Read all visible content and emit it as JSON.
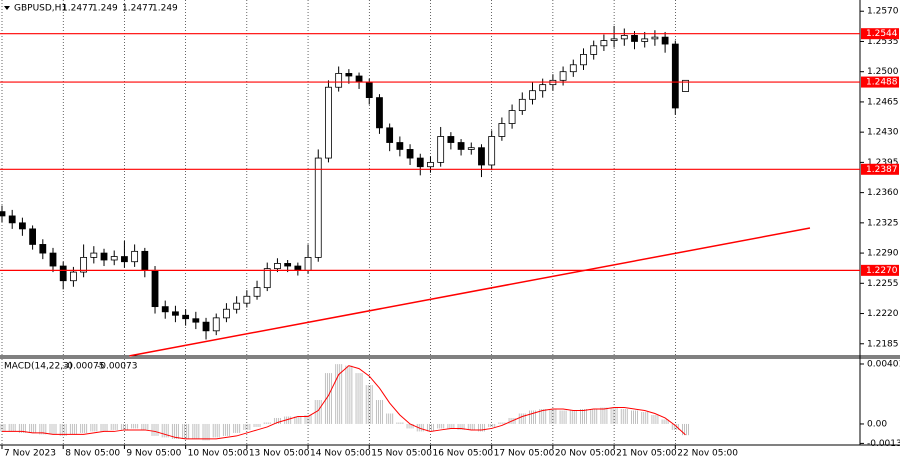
{
  "chart_data": [
    {
      "type": "candlestick",
      "title": "GBPUSD,H1",
      "xlim": [
        0,
        84.3
      ],
      "xticks": [
        {
          "value": 0,
          "label": "7 Nov 2023"
        },
        {
          "value": 6,
          "label": "8 Nov 05:00"
        },
        {
          "value": 12,
          "label": "9 Nov 05:00"
        },
        {
          "value": 18,
          "label": "10 Nov 05:00"
        },
        {
          "value": 24,
          "label": "13 Nov 05:00"
        },
        {
          "value": 30,
          "label": "14 Nov 05:00"
        },
        {
          "value": 36,
          "label": "15 Nov 05:00"
        },
        {
          "value": 42,
          "label": "16 Nov 05:00"
        },
        {
          "value": 48,
          "label": "17 Nov 05:00"
        },
        {
          "value": 54,
          "label": "20 Nov 05:00"
        },
        {
          "value": 60,
          "label": "21 Nov 05:00"
        },
        {
          "value": 66,
          "label": "22 Nov 05:00"
        }
      ],
      "ylim": [
        1.2172,
        1.2583
      ],
      "yticks": [
        {
          "value": 1.257,
          "label": "1.2570"
        },
        1.2535,
        {
          "value": 1.25,
          "label": "1.2500"
        },
        1.2465,
        {
          "value": 1.243,
          "label": "1.2430"
        },
        1.2395,
        {
          "value": 1.236,
          "label": "1.2360"
        },
        1.2325,
        {
          "value": 1.229,
          "label": "1.2290"
        },
        1.2255,
        {
          "value": 1.222,
          "label": "1.2220"
        },
        1.2185
      ],
      "open": [
        1.2338,
        1.2333,
        1.2325,
        1.2318,
        1.23,
        1.229,
        1.2275,
        1.2258,
        1.2268,
        1.2285,
        1.229,
        1.2282,
        1.2286,
        1.228,
        1.2292,
        1.227,
        1.2228,
        1.2222,
        1.2218,
        1.2214,
        1.221,
        1.22,
        1.2215,
        1.2225,
        1.2232,
        1.224,
        1.225,
        1.2272,
        1.2278,
        1.2275,
        1.227,
        1.2285,
        1.24,
        1.2482,
        1.2498,
        1.2495,
        1.2488,
        1.247,
        1.2435,
        1.2418,
        1.241,
        1.24,
        1.239,
        1.2395,
        1.2425,
        1.2418,
        1.241,
        1.2412,
        1.2392,
        1.2425,
        1.244,
        1.2455,
        1.2468,
        1.2478,
        1.2485,
        1.249,
        1.25,
        1.2508,
        1.252,
        1.253,
        1.2536,
        1.2538,
        1.2542,
        1.2535,
        1.2538,
        1.254,
        1.2532,
        1.2477
      ],
      "high": [
        1.2345,
        1.234,
        1.2331,
        1.2322,
        1.2306,
        1.2296,
        1.228,
        1.2274,
        1.23,
        1.2298,
        1.2295,
        1.2293,
        1.2304,
        1.23,
        1.2296,
        1.2275,
        1.2235,
        1.2229,
        1.2225,
        1.2222,
        1.2215,
        1.222,
        1.2232,
        1.224,
        1.2247,
        1.2258,
        1.2279,
        1.2284,
        1.2282,
        1.2279,
        1.23,
        1.241,
        1.249,
        1.2506,
        1.2503,
        1.2499,
        1.2492,
        1.2474,
        1.244,
        1.2425,
        1.2416,
        1.2405,
        1.2402,
        1.2436,
        1.243,
        1.2422,
        1.2418,
        1.2416,
        1.2432,
        1.2447,
        1.2462,
        1.2476,
        1.2488,
        1.2492,
        1.2497,
        1.2506,
        1.2514,
        1.2527,
        1.2536,
        1.2543,
        1.2553,
        1.255,
        1.2547,
        1.2546,
        1.2548,
        1.2546,
        1.2536,
        1.249
      ],
      "low": [
        1.2326,
        1.2318,
        1.231,
        1.2294,
        1.2283,
        1.2268,
        1.2248,
        1.2251,
        1.2262,
        1.2278,
        1.2275,
        1.2276,
        1.2273,
        1.2274,
        1.2262,
        1.222,
        1.2214,
        1.221,
        1.2206,
        1.2202,
        1.219,
        1.2195,
        1.221,
        1.222,
        1.2227,
        1.2236,
        1.2246,
        1.2268,
        1.2268,
        1.2264,
        1.2266,
        1.228,
        1.2395,
        1.2477,
        1.2486,
        1.248,
        1.2462,
        1.2428,
        1.2408,
        1.2402,
        1.2392,
        1.238,
        1.2383,
        1.239,
        1.241,
        1.2403,
        1.2404,
        1.2378,
        1.2386,
        1.242,
        1.2434,
        1.245,
        1.2462,
        1.247,
        1.2478,
        1.2484,
        1.2494,
        1.2502,
        1.2514,
        1.2524,
        1.2528,
        1.253,
        1.2526,
        1.2528,
        1.253,
        1.2522,
        1.245,
        1.2477
      ],
      "close": [
        1.2333,
        1.2325,
        1.2318,
        1.23,
        1.229,
        1.2275,
        1.2258,
        1.2268,
        1.2285,
        1.229,
        1.2282,
        1.2286,
        1.228,
        1.2292,
        1.227,
        1.2228,
        1.2222,
        1.2218,
        1.2214,
        1.221,
        1.22,
        1.2215,
        1.2225,
        1.2232,
        1.224,
        1.225,
        1.2272,
        1.2278,
        1.2275,
        1.227,
        1.2285,
        1.24,
        1.2482,
        1.2498,
        1.2495,
        1.2488,
        1.247,
        1.2435,
        1.2418,
        1.241,
        1.24,
        1.239,
        1.2395,
        1.2425,
        1.2418,
        1.241,
        1.2412,
        1.2392,
        1.2425,
        1.244,
        1.2455,
        1.2468,
        1.2478,
        1.2485,
        1.249,
        1.25,
        1.2508,
        1.252,
        1.253,
        1.2536,
        1.2538,
        1.2542,
        1.2535,
        1.2538,
        1.254,
        1.2532,
        1.2458,
        1.249
      ],
      "levels": [
        1.2544,
        1.2488,
        1.2387,
        1.227
      ],
      "level_labels": [
        "1.2544",
        "1.2488",
        "1.2387",
        "1.2270"
      ],
      "level_color": "#ff0000",
      "trendline": {
        "x": [
          12.5,
          79.2
        ],
        "y": [
          1.2171,
          1.2319
        ],
        "color": "#ff0000"
      }
    },
    {
      "type": "macd",
      "title": "MACD(14,22,3)",
      "ylim": [
        -0.00134,
        0.00441
      ],
      "yticks": [
        0.00401,
        {
          "value": 0,
          "label": "0.00"
        },
        -0.0013
      ],
      "series": [
        {
          "name": "histogram",
          "color": "#c0c0c0",
          "values": [
            -0.0005,
            -0.0005,
            -0.0006,
            -0.0006,
            -0.0007,
            -0.0007,
            -0.0008,
            -0.0007,
            -0.0006,
            -0.0005,
            -0.0005,
            -0.0004,
            -0.0004,
            -0.0003,
            -0.0004,
            -0.0008,
            -0.0009,
            -0.001,
            -0.001,
            -0.001,
            -0.0011,
            -0.0009,
            -0.0008,
            -0.0006,
            -0.0004,
            -0.0002,
            0.0001,
            0.0004,
            0.0005,
            0.0005,
            0.0006,
            0.0016,
            0.0034,
            0.004,
            0.0039,
            0.0034,
            0.0026,
            0.0016,
            0.0007,
            0.0001,
            -0.0003,
            -0.0005,
            -0.0005,
            -0.0003,
            -0.0003,
            -0.0004,
            -0.0004,
            -0.0005,
            -0.0002,
            0.0001,
            0.0004,
            0.0007,
            0.0009,
            0.001,
            0.001,
            0.0009,
            0.0009,
            0.001,
            0.001,
            0.0011,
            0.0011,
            0.001,
            0.0009,
            0.0008,
            0.0006,
            0.0003,
            -0.0004,
            -0.00075
          ]
        },
        {
          "name": "signal",
          "color": "#ff0000",
          "values": [
            -0.0005,
            -0.0005,
            -0.0005,
            -0.0006,
            -0.0006,
            -0.0007,
            -0.0007,
            -0.0007,
            -0.0007,
            -0.0006,
            -0.0005,
            -0.0005,
            -0.0004,
            -0.0004,
            -0.0004,
            -0.0005,
            -0.0007,
            -0.0009,
            -0.001,
            -0.001,
            -0.001,
            -0.001,
            -0.0009,
            -0.0008,
            -0.0006,
            -0.0004,
            -0.0002,
            0.0001,
            0.0003,
            0.0005,
            0.0005,
            0.0009,
            0.0019,
            0.0033,
            0.0039,
            0.0037,
            0.0032,
            0.0024,
            0.0014,
            0.0006,
            0.0,
            -0.0003,
            -0.0005,
            -0.0004,
            -0.0003,
            -0.0003,
            -0.0004,
            -0.0004,
            -0.0003,
            -0.0001,
            0.0002,
            0.0005,
            0.0007,
            0.0009,
            0.001,
            0.001,
            0.0009,
            0.0009,
            0.001,
            0.001,
            0.0011,
            0.0011,
            0.001,
            0.0009,
            0.0007,
            0.0004,
            -0.0001,
            -0.00073
          ]
        }
      ]
    }
  ]
}
